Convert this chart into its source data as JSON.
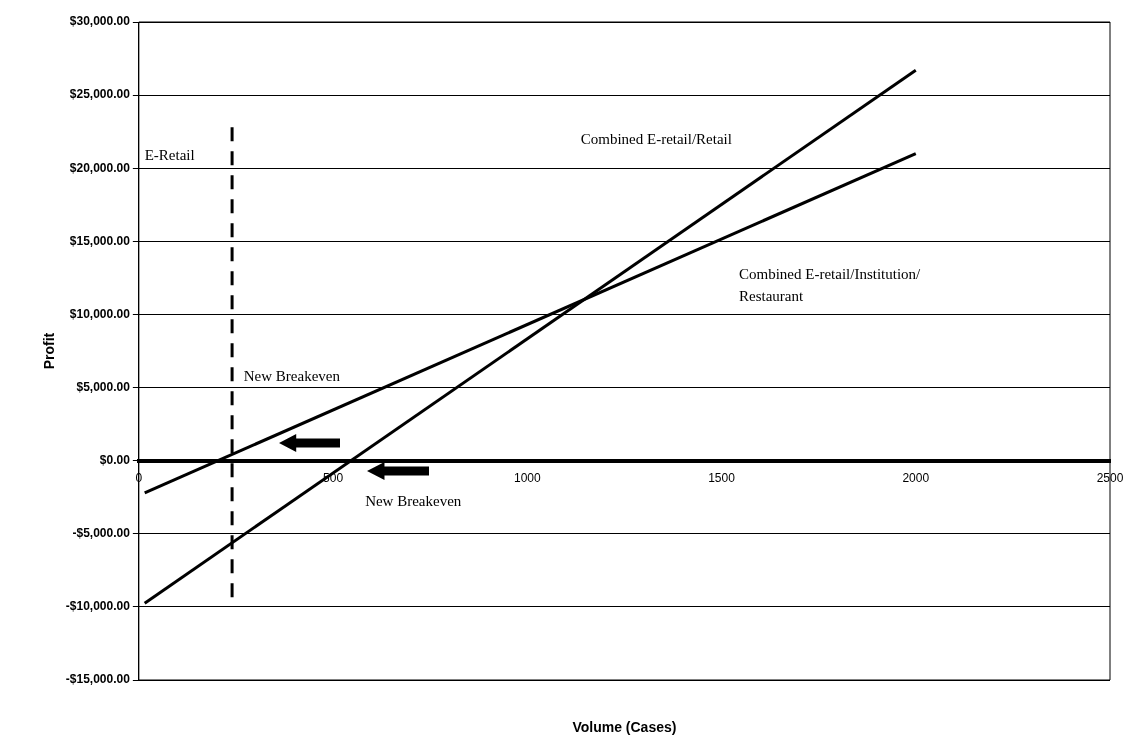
{
  "chart_data": {
    "type": "line",
    "xlabel": "Volume (Cases)",
    "ylabel": "Profit",
    "xlim": [
      0,
      2500
    ],
    "xticks": [
      0,
      500,
      1000,
      1500,
      2000,
      2500
    ],
    "ylim": [
      -15000,
      30000
    ],
    "yticks": [
      {
        "value": -15000,
        "label": "-$15,000.00"
      },
      {
        "value": -10000,
        "label": "-$10,000.00"
      },
      {
        "value": -5000,
        "label": "-$5,000.00"
      },
      {
        "value": 0,
        "label": "$0.00"
      },
      {
        "value": 5000,
        "label": "$5,000.00"
      },
      {
        "value": 10000,
        "label": "$10,000.00"
      },
      {
        "value": 15000,
        "label": "$15,000.00"
      },
      {
        "value": 20000,
        "label": "$20,000.00"
      },
      {
        "value": 25000,
        "label": "$25,000.00"
      },
      {
        "value": 30000,
        "label": "$30,000.00"
      }
    ],
    "grid": "y",
    "legend": false,
    "series": [
      {
        "name": "Combined E-retail/Retail",
        "color": "#000000",
        "x": [
          15,
          2000
        ],
        "values": [
          -9750,
          26700
        ]
      },
      {
        "name": "Combined E-retail/Institution/Restaurant",
        "color": "#000000",
        "x": [
          15,
          2000
        ],
        "values": [
          -2200,
          21000
        ]
      },
      {
        "name": "E-Retail",
        "color": "#000000",
        "x": [
          240,
          240
        ],
        "values": [
          22800,
          -9900
        ],
        "line_style": "dashed"
      }
    ],
    "annotations": [
      "New Breakeven",
      "New Breakeven"
    ]
  }
}
